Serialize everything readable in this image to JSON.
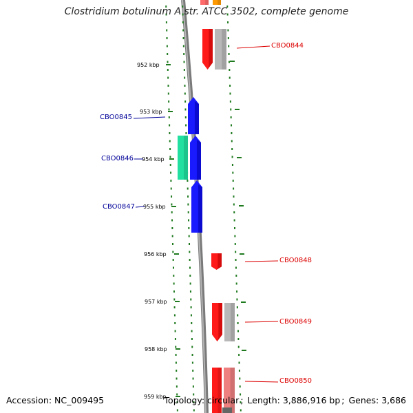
{
  "title": "Clostridium botulinum A str. ATCC 3502, complete genome",
  "footer": {
    "accession_label": "Accession:",
    "accession": "NC_009495",
    "topology_label": "Topology:",
    "topology": "circular",
    "length_label": "Length:",
    "length": "3,886,916 bp",
    "genes_label": "Genes:",
    "genes": "3,686"
  },
  "colors": {
    "backbone": "#8a8a8a",
    "tick": "#1f7a1f",
    "forward_gene": "#ff1a1a",
    "forward_gene_shade": "#b40000",
    "reverse_gene": "#1a1aff",
    "reverse_gene_shade": "#0000a8",
    "rna_gene": "#22e0a0",
    "pseudo": "#b8b8b8",
    "orange": "#ff9900",
    "label_forward": "#dd0000",
    "label_reverse": "#000099"
  },
  "scale_ticks": [
    "952 kbp",
    "953 kbp",
    "954 kbp",
    "955 kbp",
    "956 kbp",
    "957 kbp",
    "958 kbp",
    "959 kbp"
  ],
  "genes": [
    {
      "name": "CBO0844",
      "strand": "+"
    },
    {
      "name": "CBO0845",
      "strand": "-"
    },
    {
      "name": "CBO0846",
      "strand": "-"
    },
    {
      "name": "CBO0847",
      "strand": "-"
    },
    {
      "name": "CBO0848",
      "strand": "+"
    },
    {
      "name": "CBO0849",
      "strand": "+"
    },
    {
      "name": "CBO0850",
      "strand": "+"
    }
  ]
}
